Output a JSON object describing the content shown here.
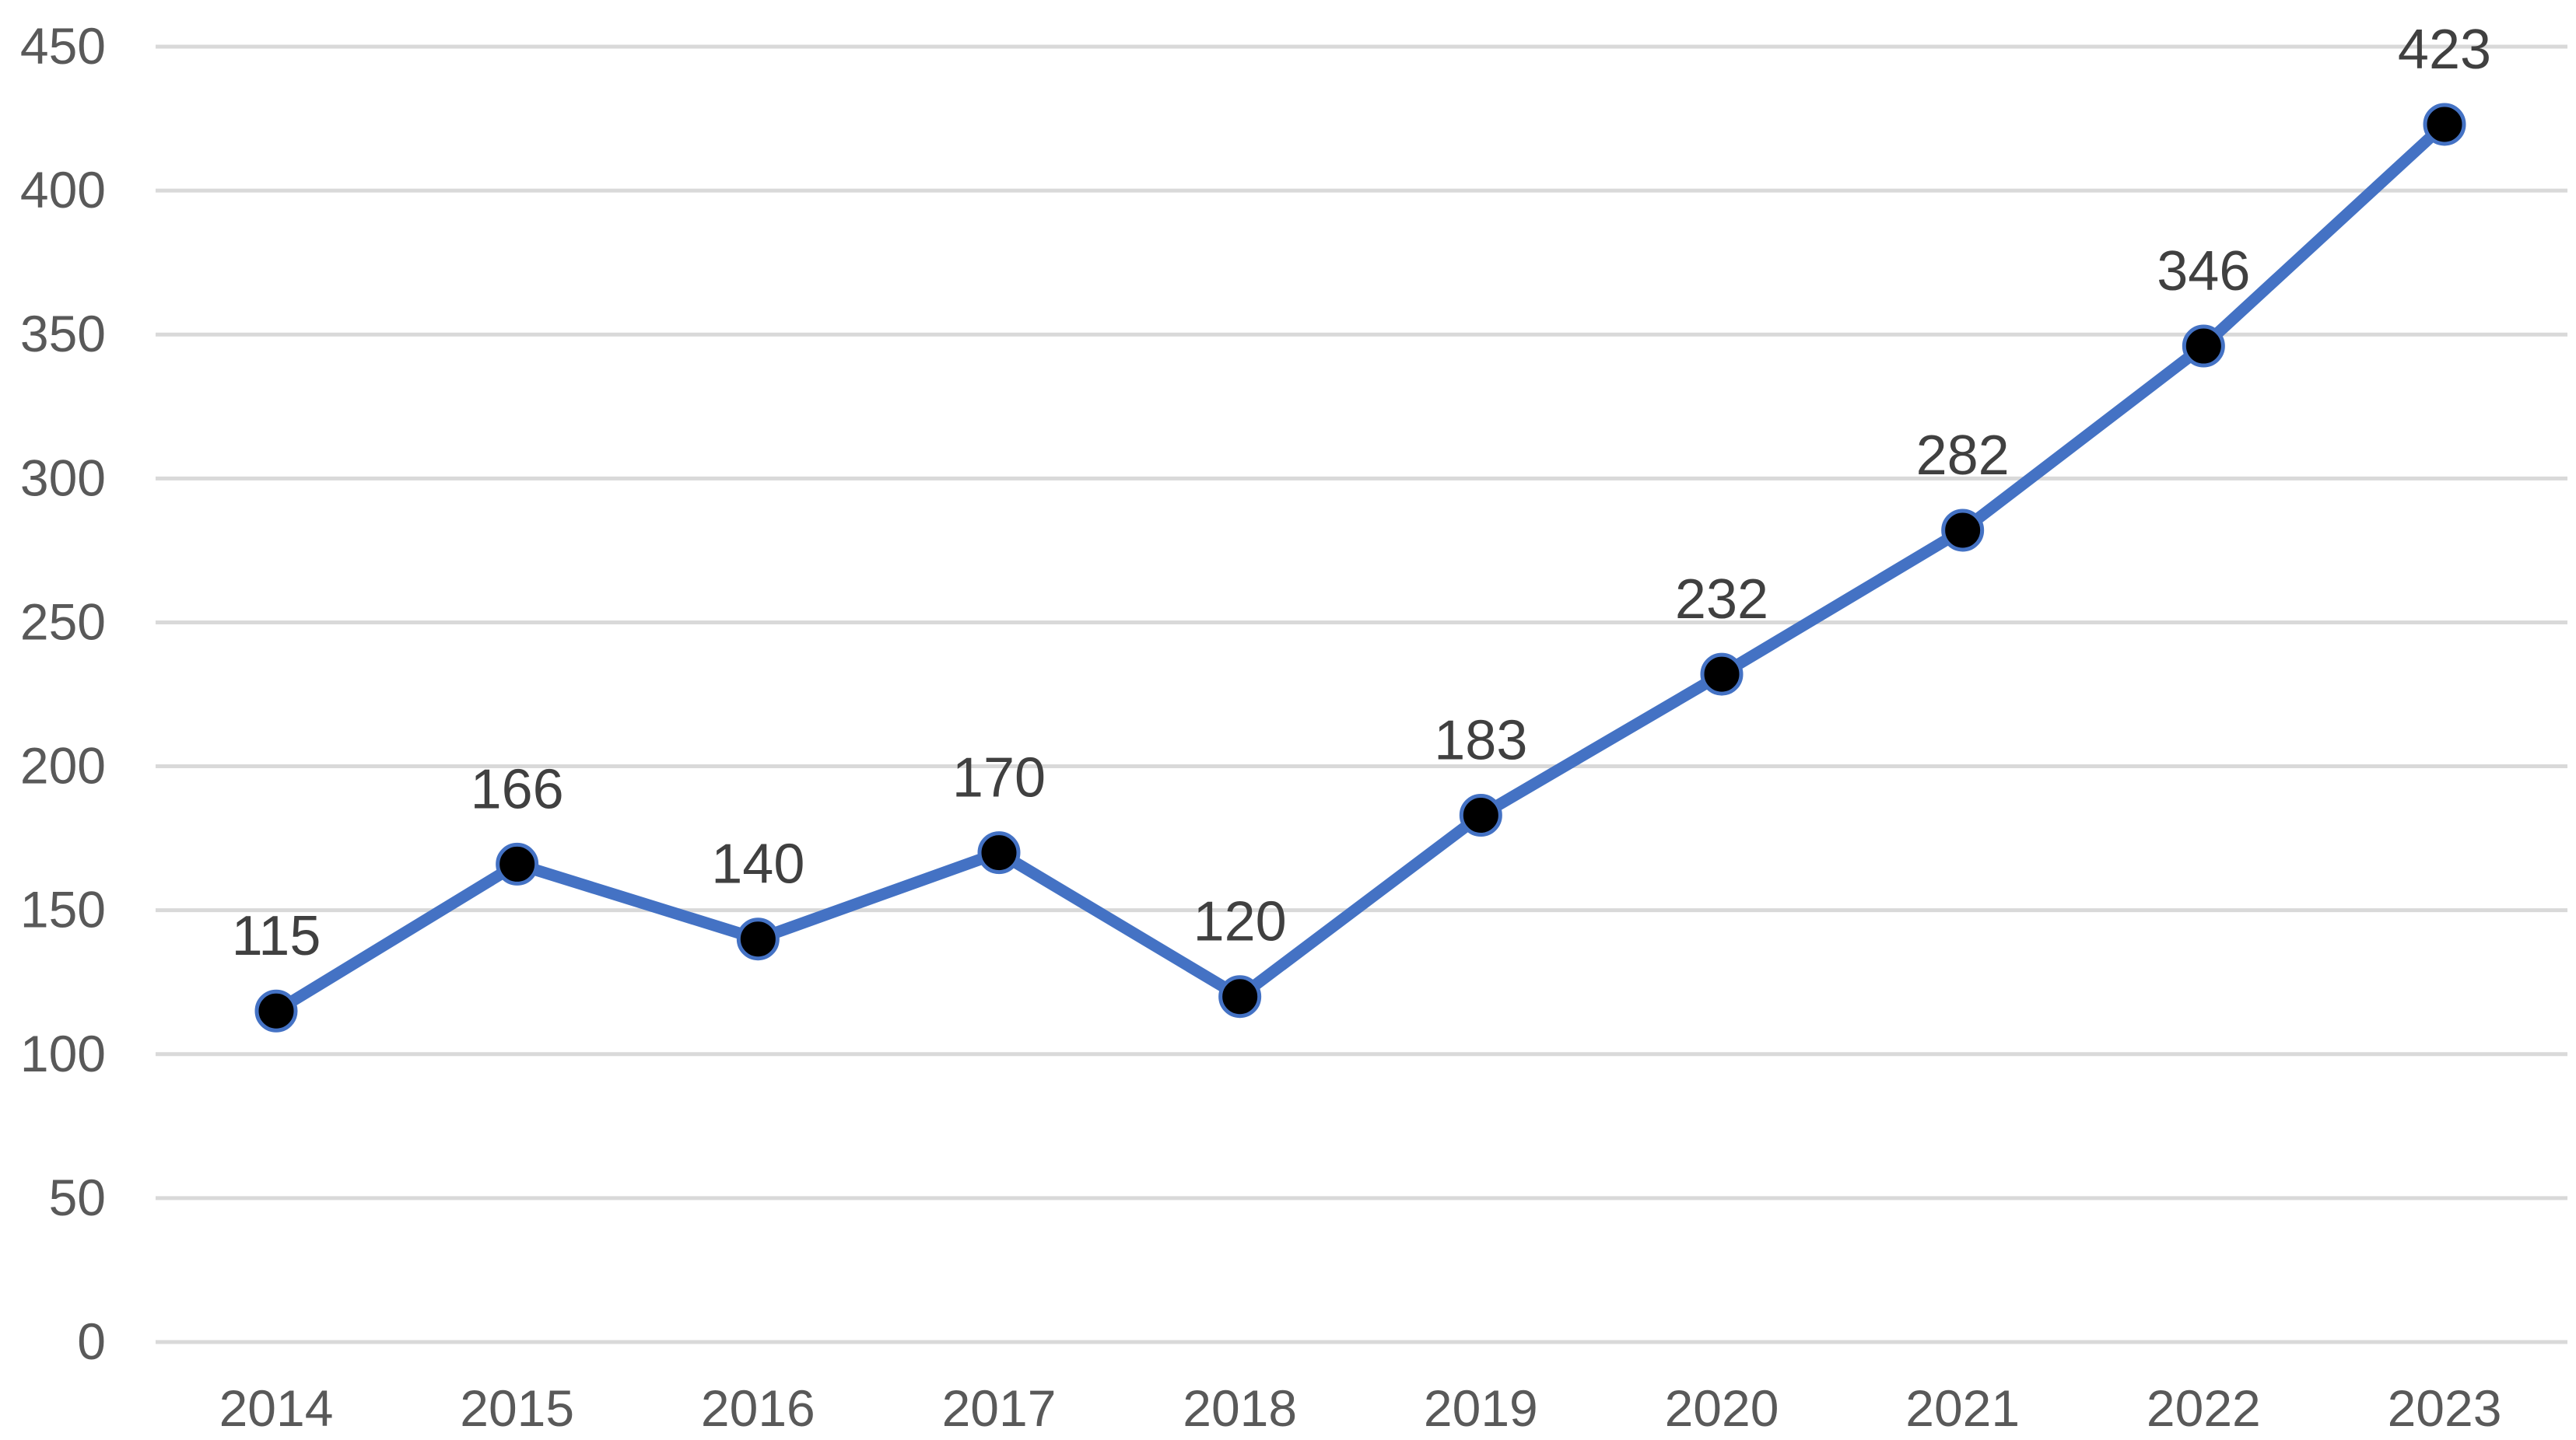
{
  "chart_data": {
    "type": "line",
    "title": "",
    "xlabel": "",
    "ylabel": "",
    "categories": [
      "2014",
      "2015",
      "2016",
      "2017",
      "2018",
      "2019",
      "2020",
      "2021",
      "2022",
      "2023"
    ],
    "series": [
      {
        "values": [
          115,
          166,
          140,
          170,
          120,
          183,
          232,
          282,
          346,
          423
        ],
        "color": "#4472c4",
        "marker_fill": "#000000",
        "data_labels": true
      }
    ],
    "ylim": [
      0,
      450
    ],
    "yticks": [
      0,
      50,
      100,
      150,
      200,
      250,
      300,
      350,
      400,
      450
    ],
    "grid": "horizontal",
    "legend": "none",
    "colors": {
      "grid": "#d9d9d9",
      "tick_text": "#595959",
      "label_text": "#404040"
    }
  }
}
